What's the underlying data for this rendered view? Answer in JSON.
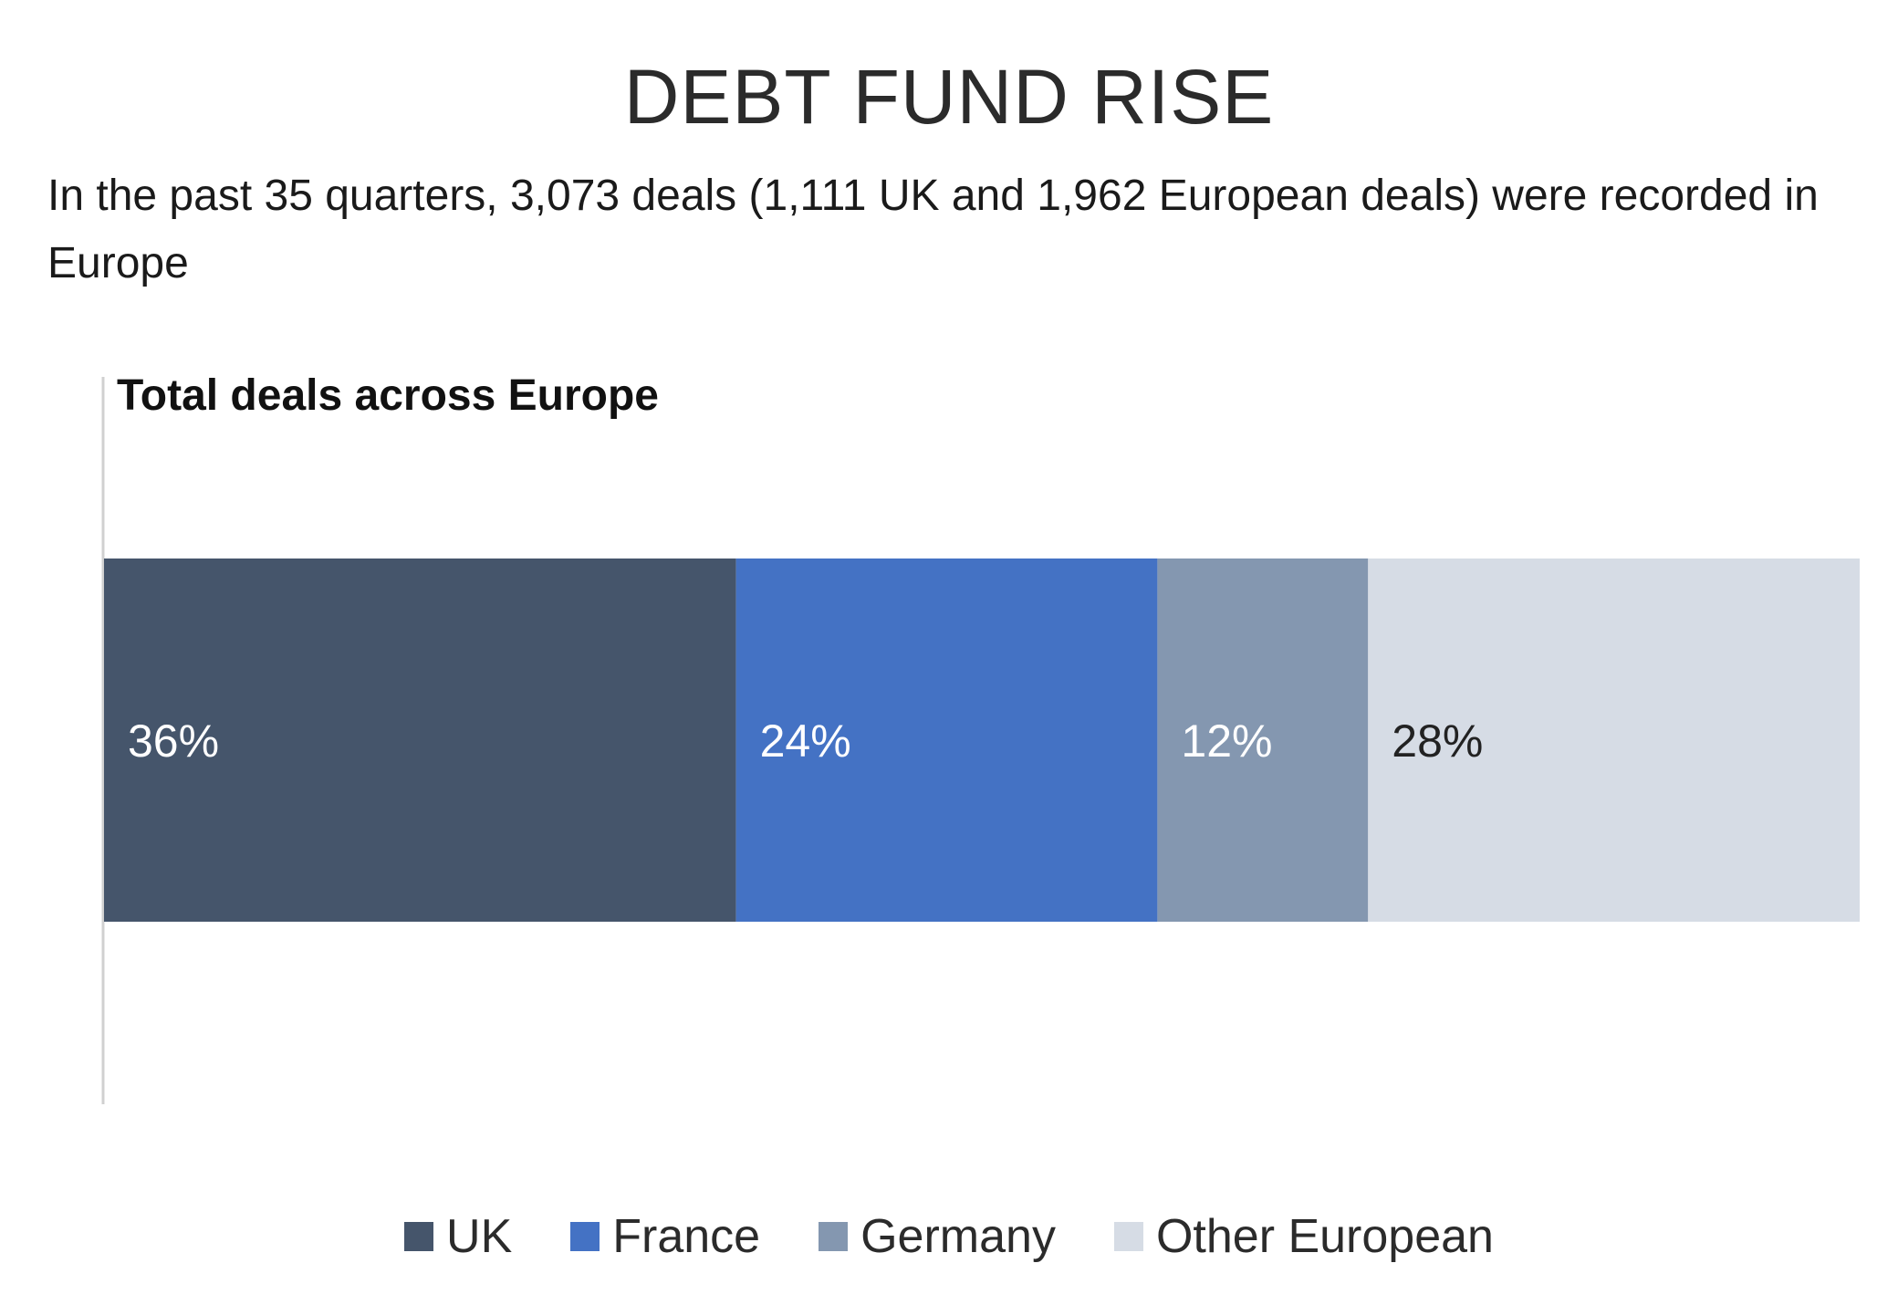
{
  "header": {
    "title": "DEBT FUND RISE",
    "subtitle": "In the past 35 quarters, 3,073 deals (1,111 UK and 1,962 European deals) were recorded in Europe"
  },
  "chart_data": {
    "type": "bar",
    "orientation": "horizontal",
    "stacked": "100%",
    "title": "Total deals across Europe",
    "categories": [
      "Total deals across Europe"
    ],
    "unit": "%",
    "series": [
      {
        "name": "UK",
        "values": [
          36
        ],
        "label": "36%",
        "color": "#45556b",
        "label_color": "#ffffff"
      },
      {
        "name": "France",
        "values": [
          24
        ],
        "label": "24%",
        "color": "#4472c4",
        "label_color": "#ffffff"
      },
      {
        "name": "Germany",
        "values": [
          12
        ],
        "label": "12%",
        "color": "#8497b0",
        "label_color": "#ffffff"
      },
      {
        "name": "Other European",
        "values": [
          28
        ],
        "label": "28%",
        "color": "#d6dce5",
        "label_color": "#222222"
      }
    ],
    "xlim": [
      0,
      100
    ],
    "grid": false,
    "legend_position": "bottom"
  }
}
